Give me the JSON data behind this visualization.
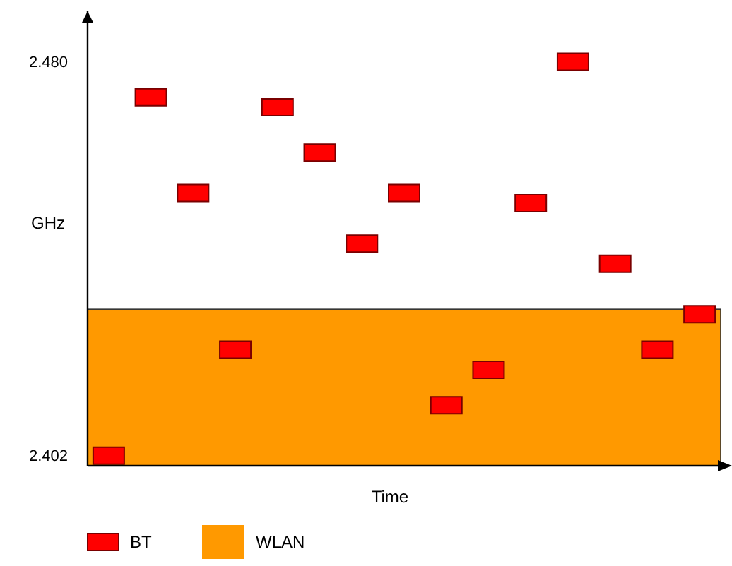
{
  "chart_data": {
    "type": "scatter",
    "xlabel": "Time",
    "ylabel": "GHz",
    "categories": [
      null,
      null,
      null,
      null,
      null,
      null,
      null,
      null,
      null,
      null,
      null,
      null,
      null,
      null,
      null
    ],
    "series": [
      {
        "name": "BT",
        "color": "#ff0000",
        "values": [
          2.402,
          2.473,
          2.454,
          2.423,
          2.471,
          2.462,
          2.444,
          2.454,
          2.412,
          2.419,
          2.452,
          2.48,
          2.44,
          2.423,
          2.43
        ]
      }
    ],
    "marker": "square",
    "ylim": [
      2.4,
      2.49
    ],
    "yticks": [
      {
        "value": 2.402,
        "label": "2.402"
      },
      {
        "value": 2.48,
        "label": "2.480"
      }
    ],
    "bands": [
      {
        "axis": "y",
        "from": 2.4,
        "to": 2.431,
        "label": "WLAN",
        "color": "#ff9900"
      }
    ],
    "grid": false,
    "legend": "bottom"
  }
}
